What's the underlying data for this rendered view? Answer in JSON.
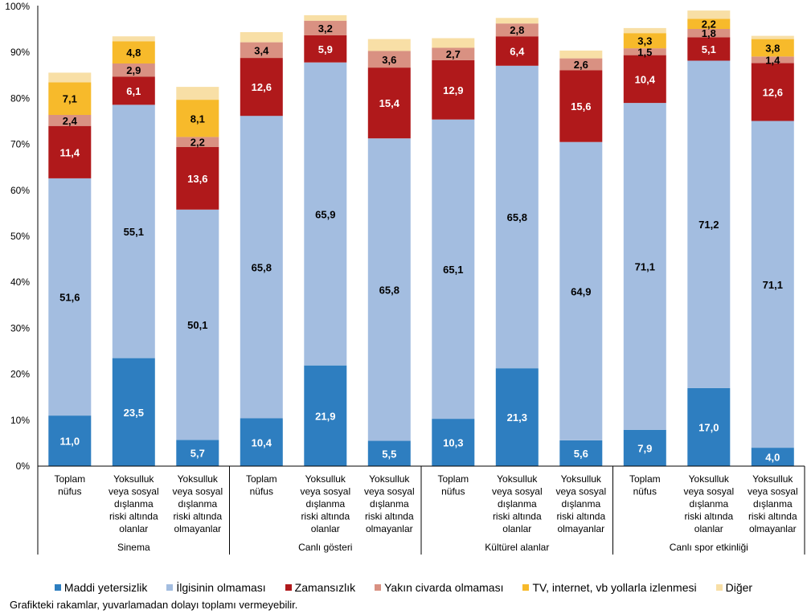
{
  "chart_data": {
    "type": "bar",
    "stacked": true,
    "title": "",
    "xlabel": "",
    "ylabel": "",
    "ylim": [
      0,
      100
    ],
    "yticks": [
      "0%",
      "10%",
      "20%",
      "30%",
      "40%",
      "50%",
      "60%",
      "70%",
      "80%",
      "90%",
      "100%"
    ],
    "grid": false,
    "legend_position": "bottom",
    "groups": [
      "Sinema",
      "Canlı gösteri",
      "Kültürel alanlar",
      "Canlı spor etkinliği"
    ],
    "categories": [
      "Toplam nüfus",
      "Yoksulluk veya sosyal dışlanma riski altında olanlar",
      "Yoksulluk veya sosyal dışlanma riski altında olmayanlar",
      "Toplam nüfus",
      "Yoksulluk veya sosyal dışlanma riski altında olanlar",
      "Yoksulluk veya sosyal dışlanma riski altında olmayanlar",
      "Toplam nüfus",
      "Yoksulluk veya sosyal dışlanma riski altında olanlar",
      "Yoksulluk veya sosyal dışlanma riski altında olmayanlar",
      "Toplam nüfus",
      "Yoksulluk veya sosyal dışlanma riski altında olanlar",
      "Yoksulluk veya sosyal dışlanma riski altında olmayanlar"
    ],
    "category_lines": [
      [
        "Toplam",
        "nüfus"
      ],
      [
        "Yoksulluk",
        "veya sosyal",
        "dışlanma",
        "riski altında",
        "olanlar"
      ],
      [
        "Yoksulluk",
        "veya sosyal",
        "dışlanma",
        "riski altında",
        "olmayanlar"
      ]
    ],
    "series": [
      {
        "name": "Maddi yetersizlik",
        "color": "#2E7EC0",
        "label_color": "#ffffff",
        "values": [
          11.0,
          23.5,
          5.7,
          10.4,
          21.9,
          5.5,
          10.3,
          21.3,
          5.6,
          7.9,
          17.0,
          4.0
        ],
        "labels": [
          "11,0",
          "23,5",
          "5,7",
          "10,4",
          "21,9",
          "5,5",
          "10,3",
          "21,3",
          "5,6",
          "7,9",
          "17,0",
          "4,0"
        ]
      },
      {
        "name": "İlgisinin olmaması",
        "color": "#A3BDE0",
        "label_color": "#000000",
        "values": [
          51.6,
          55.1,
          50.1,
          65.8,
          65.9,
          65.8,
          65.1,
          65.8,
          64.9,
          71.1,
          71.2,
          71.1
        ],
        "labels": [
          "51,6",
          "55,1",
          "50,1",
          "65,8",
          "65,9",
          "65,8",
          "65,1",
          "65,8",
          "64,9",
          "71,1",
          "71,2",
          "71,1"
        ]
      },
      {
        "name": "Zamansızlık",
        "color": "#B0191B",
        "label_color": "#ffffff",
        "values": [
          11.4,
          6.1,
          13.6,
          12.6,
          5.9,
          15.4,
          12.9,
          6.4,
          15.6,
          10.4,
          5.1,
          12.6
        ],
        "labels": [
          "11,4",
          "6,1",
          "13,6",
          "12,6",
          "5,9",
          "15,4",
          "12,9",
          "6,4",
          "15,6",
          "10,4",
          "5,1",
          "12,6"
        ]
      },
      {
        "name": "Yakın civarda olmaması",
        "color": "#D99182",
        "label_color": "#000000",
        "values": [
          2.4,
          2.9,
          2.2,
          3.4,
          3.2,
          3.6,
          2.7,
          2.8,
          2.6,
          1.5,
          1.8,
          1.4
        ],
        "labels": [
          "2,4",
          "2,9",
          "2,2",
          "3,4",
          "3,2",
          "3,6",
          "2,7",
          "2,8",
          "2,6",
          "1,5",
          "1,8",
          "1,4"
        ]
      },
      {
        "name": "TV, internet, vb yollarla izlenmesi",
        "color": "#F7BA2B",
        "label_color": "#000000",
        "values": [
          7.1,
          4.8,
          8.1,
          0,
          0,
          0,
          0,
          0,
          0,
          3.3,
          2.2,
          3.8
        ],
        "labels": [
          "7,1",
          "4,8",
          "8,1",
          "",
          "",
          "",
          "",
          "",
          "",
          "3,3",
          "2,2",
          "3,8"
        ]
      },
      {
        "name": "Diğer",
        "color": "#F8DFA6",
        "label_color": "#000000",
        "values": [
          2.1,
          1.1,
          2.8,
          2.2,
          1.2,
          2.6,
          2.1,
          1.2,
          1.7,
          1.1,
          1.8,
          0.7
        ],
        "labels": [
          "",
          "",
          "",
          "",
          "",
          "",
          "",
          "",
          "",
          "",
          "",
          ""
        ]
      }
    ]
  },
  "legend": {
    "items": [
      {
        "label": "Maddi yetersizlik",
        "color": "#2E7EC0"
      },
      {
        "label": "İlgisinin olmaması",
        "color": "#A3BDE0"
      },
      {
        "label": "Zamansızlık",
        "color": "#B0191B"
      },
      {
        "label": "Yakın civarda olmaması",
        "color": "#D99182"
      },
      {
        "label": "TV, internet, vb yollarla izlenmesi",
        "color": "#F7BA2B"
      },
      {
        "label": "Diğer",
        "color": "#F8DFA6"
      }
    ]
  },
  "footnote": "Grafikteki rakamlar, yuvarlamadan dolayı toplamı vermeyebilir."
}
